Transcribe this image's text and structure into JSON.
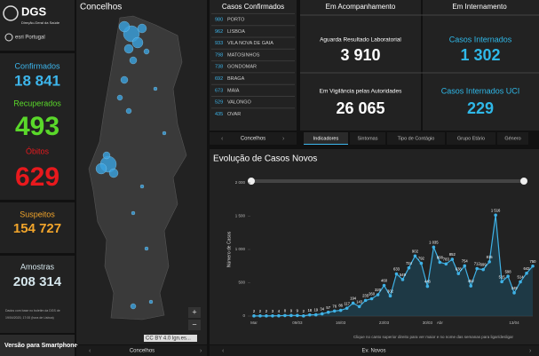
{
  "header": {
    "title": "DGS",
    "subtitle": "Direção-Geral da Saúde",
    "partner": "esri Portugal"
  },
  "sidebar": {
    "stats": [
      {
        "label": "Confirmados",
        "value": "18 841",
        "color": "#3db6ec"
      },
      {
        "label": "Recuperados",
        "value": "493",
        "color": "#5ad82a"
      },
      {
        "label": "Óbitos",
        "value": "629",
        "color": "#e8191d"
      },
      {
        "label": "Suspeitos",
        "value": "154 727",
        "color": "#f2a52b"
      },
      {
        "label": "Amostras",
        "value": "208 314",
        "color": "#d5e6ec"
      }
    ],
    "note": "Dados com base no boletim da DGS de",
    "updated": "19/04/2020, 17:00 (hora de Lisboa)",
    "button": "Versão para Smartphone"
  },
  "map": {
    "title": "Concelhos",
    "attribution": "CC BY 4.0 lgn.es...",
    "zoom_in": "+",
    "zoom_out": "−",
    "tab": "Concelhos"
  },
  "list": {
    "title": "Casos Confirmados",
    "rows": [
      {
        "count": 980,
        "name": "PORTO"
      },
      {
        "count": 962,
        "name": "LISBOA"
      },
      {
        "count": 933,
        "name": "VILA NOVA DE GAIA"
      },
      {
        "count": 798,
        "name": "MATOSINHOS"
      },
      {
        "count": 738,
        "name": "GONDOMAR"
      },
      {
        "count": 692,
        "name": "BRAGA"
      },
      {
        "count": 673,
        "name": "MAIA"
      },
      {
        "count": 529,
        "name": "VALONGO"
      },
      {
        "count": 435,
        "name": "OVAR"
      }
    ],
    "tab": "Concelhos"
  },
  "kpis": {
    "headers": [
      "Em Acompanhamento",
      "Em Internamento"
    ],
    "items": [
      {
        "label": "Aguarda Resultado Laboratorial",
        "value": "3 910"
      },
      {
        "label": "Casos Internados",
        "value": "1 302"
      },
      {
        "label": "Em Vigilância pelas Autoridades",
        "value": "26 065"
      },
      {
        "label": "Casos Internados UCI",
        "value": "229"
      }
    ]
  },
  "tabs": [
    "Indicadores",
    "Sintomas",
    "Tipo de Contágio",
    "Grupo Etário",
    "Género"
  ],
  "chart_data": {
    "type": "line",
    "title": "Evolução de Casos Novos",
    "y_label": "Número de Casos",
    "color": "#3fb2e6",
    "categories": [
      "Mar",
      null,
      null,
      null,
      null,
      null,
      null,
      "09/03",
      null,
      null,
      null,
      null,
      null,
      null,
      "16/03",
      null,
      null,
      null,
      null,
      null,
      null,
      "23/03",
      null,
      null,
      null,
      null,
      null,
      null,
      "30/03",
      null,
      "Abr",
      null,
      null,
      null,
      null,
      null,
      null,
      null,
      null,
      null,
      null,
      null,
      "13/04",
      null,
      null,
      null
    ],
    "values": [
      2,
      2,
      2,
      3,
      4,
      8,
      9,
      9,
      2,
      18,
      19,
      34,
      57,
      76,
      86,
      117,
      194,
      143,
      235,
      260,
      320,
      460,
      302,
      633,
      549,
      724,
      902,
      792,
      446,
      1035,
      808,
      783,
      852,
      638,
      754,
      452,
      712,
      699,
      815,
      1516,
      515,
      598,
      349,
      514,
      643,
      750
    ],
    "value_labels": [
      "2",
      "2",
      "2",
      "3",
      "4",
      "8",
      "9",
      "9",
      "2",
      "18",
      "19",
      "34",
      "57",
      "76",
      "86",
      "117",
      "194",
      "143",
      "235",
      "260",
      "320",
      "460",
      "302",
      "633",
      "549",
      "724",
      "902",
      "792",
      "446",
      "1 035",
      "808",
      "783",
      "852",
      "638",
      "754",
      "452",
      "712",
      "699",
      "815",
      "1 516",
      "515",
      "598",
      "349",
      "514",
      "643",
      "750"
    ],
    "ylim": [
      0,
      2000
    ],
    "yticks": [
      0,
      500,
      {
        "value": 1000,
        "label": "1 000"
      },
      {
        "value": 1500,
        "label": "1 500"
      },
      {
        "value": 2000,
        "label": "2 000"
      }
    ],
    "grid": false
  },
  "chart_footer": {
    "note": "Clique no canto superior direito para ver maior e no nome das semanas para ligar/desligar",
    "tab": "Ev. Novos"
  }
}
